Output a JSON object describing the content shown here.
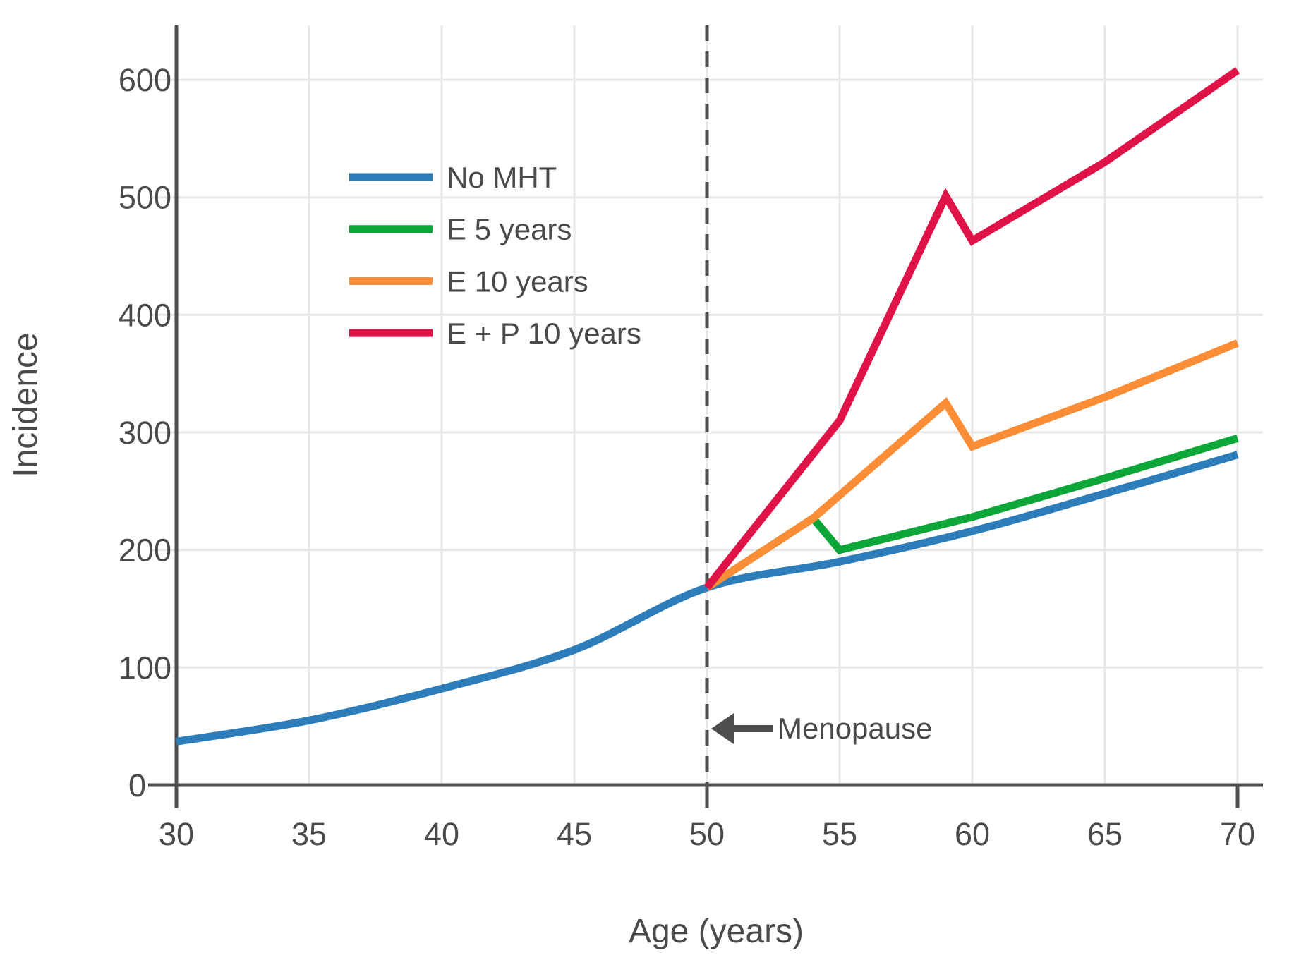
{
  "chart_data": {
    "type": "line",
    "title": "",
    "xlabel": "Age (years)",
    "ylabel": "Incidence",
    "xlim": [
      29,
      71
    ],
    "ylim": [
      0,
      650
    ],
    "xticks": [
      30,
      35,
      40,
      45,
      50,
      55,
      60,
      65,
      70
    ],
    "yticks": [
      0,
      100,
      200,
      300,
      400,
      500,
      600
    ],
    "grid": true,
    "legend_position": "upper-left-inside",
    "series": [
      {
        "name": "No MHT",
        "color": "#2d7dbb",
        "smooth": true,
        "x": [
          30,
          35,
          40,
          45,
          50,
          55,
          60,
          65,
          70
        ],
        "y": [
          37,
          55,
          82,
          115,
          168,
          190,
          216,
          248,
          281
        ]
      },
      {
        "name": "E 5 years",
        "color": "#0da639",
        "smooth": false,
        "x": [
          50,
          54,
          55,
          60,
          65,
          70
        ],
        "y": [
          168,
          227,
          200,
          228,
          261,
          295
        ]
      },
      {
        "name": "E 10 years",
        "color": "#fb8d36",
        "smooth": false,
        "x": [
          50,
          54,
          59,
          60,
          65,
          70
        ],
        "y": [
          168,
          227,
          325,
          288,
          330,
          376
        ]
      },
      {
        "name": "E + P 10 years",
        "color": "#e01349",
        "smooth": false,
        "x": [
          50,
          55,
          59,
          60,
          65,
          70
        ],
        "y": [
          168,
          310,
          501,
          463,
          530,
          608
        ]
      }
    ],
    "annotations": [
      {
        "type": "vline",
        "x": 50,
        "style": "dashed",
        "color": "#4d4d4d"
      },
      {
        "type": "arrow-label",
        "text": "Menopause",
        "arrow_points_to_x": 50,
        "at_y": 48,
        "color": "#4d4d4d"
      }
    ]
  },
  "styles": {
    "background": "#ffffff",
    "grid_color": "#e8e8e8",
    "axis_color": "#4d4d4d",
    "text_color": "#4a4a4a"
  }
}
